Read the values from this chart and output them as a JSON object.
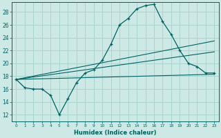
{
  "xlabel": "Humidex (Indice chaleur)",
  "bg_color": "#cce9e5",
  "grid_color": "#aad4d0",
  "line_color": "#006060",
  "xlim": [
    -0.5,
    23.5
  ],
  "ylim": [
    11.0,
    29.5
  ],
  "xticks": [
    0,
    1,
    2,
    3,
    4,
    5,
    6,
    7,
    8,
    9,
    10,
    11,
    12,
    13,
    14,
    15,
    16,
    17,
    18,
    19,
    20,
    21,
    22,
    23
  ],
  "yticks": [
    12,
    14,
    16,
    18,
    20,
    22,
    24,
    26,
    28
  ],
  "main_x": [
    0,
    1,
    2,
    3,
    4,
    5,
    6,
    7,
    8,
    9,
    10,
    11,
    12,
    13,
    14,
    15,
    16,
    17,
    18,
    19,
    20,
    21,
    22,
    23
  ],
  "main_y": [
    17.5,
    16.2,
    16.0,
    16.0,
    15.0,
    12.0,
    14.5,
    17.0,
    18.5,
    19.0,
    20.5,
    23.0,
    26.0,
    27.0,
    28.5,
    29.0,
    29.2,
    26.5,
    24.5,
    22.0,
    20.0,
    19.5,
    18.5,
    18.5
  ],
  "line1_x": [
    0,
    23
  ],
  "line1_y": [
    17.5,
    23.5
  ],
  "line2_x": [
    0,
    23
  ],
  "line2_y": [
    17.5,
    21.8
  ],
  "line3_x": [
    0,
    23
  ],
  "line3_y": [
    17.5,
    18.3
  ],
  "figwidth": 3.2,
  "figheight": 2.0,
  "dpi": 100
}
